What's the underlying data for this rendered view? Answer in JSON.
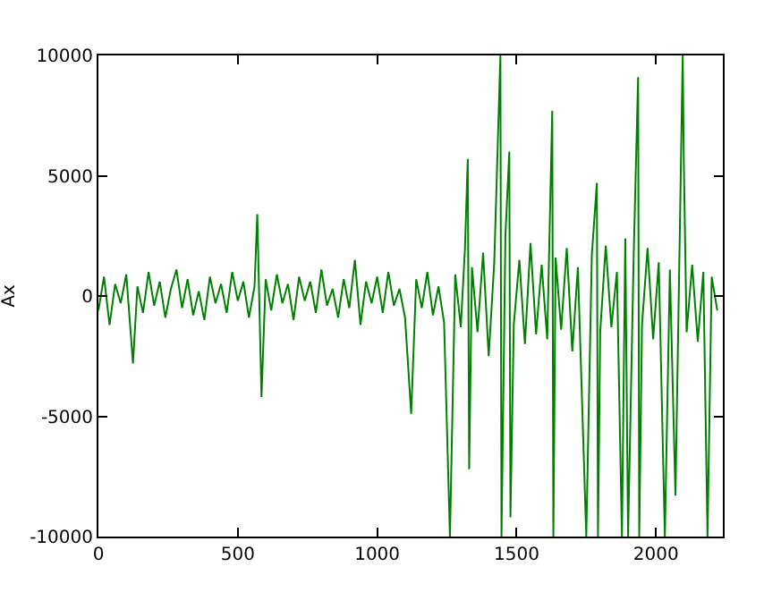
{
  "chart_data": {
    "type": "line",
    "ylabel": "Ax",
    "x": [
      0,
      20,
      40,
      60,
      80,
      100,
      124,
      140,
      160,
      180,
      200,
      220,
      240,
      260,
      280,
      300,
      320,
      340,
      360,
      380,
      400,
      420,
      440,
      460,
      480,
      500,
      520,
      540,
      560,
      570,
      585,
      600,
      620,
      640,
      660,
      680,
      700,
      720,
      740,
      760,
      780,
      800,
      820,
      840,
      860,
      880,
      900,
      920,
      940,
      960,
      980,
      1000,
      1020,
      1040,
      1060,
      1080,
      1100,
      1122,
      1140,
      1160,
      1180,
      1200,
      1220,
      1240,
      1261,
      1280,
      1300,
      1315,
      1325,
      1330,
      1340,
      1360,
      1380,
      1400,
      1420,
      1442,
      1446,
      1460,
      1474,
      1478,
      1490,
      1510,
      1530,
      1550,
      1570,
      1590,
      1610,
      1628,
      1632,
      1640,
      1660,
      1680,
      1700,
      1720,
      1750,
      1770,
      1788,
      1792,
      1800,
      1820,
      1840,
      1860,
      1878,
      1890,
      1900,
      1920,
      1936,
      1940,
      1950,
      1970,
      1990,
      2010,
      2032,
      2050,
      2070,
      2085,
      2096,
      2100,
      2110,
      2130,
      2150,
      2170,
      2185,
      2200,
      2220
    ],
    "series": [
      {
        "color": "#008000",
        "values": [
          -600,
          800,
          -1200,
          500,
          -300,
          900,
          -2800,
          400,
          -700,
          1000,
          -400,
          600,
          -900,
          300,
          1100,
          -500,
          700,
          -800,
          200,
          -1000,
          800,
          -300,
          500,
          -700,
          1000,
          -200,
          600,
          -900,
          400,
          3400,
          -4200,
          700,
          -600,
          900,
          -300,
          500,
          -1000,
          800,
          -200,
          600,
          -700,
          1100,
          -400,
          300,
          -900,
          700,
          -500,
          1500,
          -1200,
          600,
          -300,
          800,
          -700,
          1000,
          -400,
          300,
          -900,
          -4900,
          700,
          -500,
          1000,
          -800,
          400,
          -1100,
          -10000,
          900,
          -1300,
          2000,
          5700,
          -7200,
          1200,
          -1500,
          1800,
          -2500,
          1400,
          10000,
          -10000,
          2500,
          6000,
          -9200,
          -1200,
          1500,
          -2000,
          2200,
          -1600,
          1300,
          -1800,
          7700,
          -10000,
          1600,
          -1400,
          2000,
          -2300,
          1200,
          -10000,
          1700,
          4700,
          -10000,
          -1500,
          2100,
          -1300,
          1000,
          -10000,
          2400,
          -10000,
          1600,
          9100,
          -10000,
          -1200,
          2000,
          -1800,
          1400,
          -10000,
          1100,
          -8300,
          2200,
          10000,
          5500,
          -1500,
          1300,
          -1900,
          1000,
          -10000,
          800,
          -600
        ]
      }
    ],
    "xlim": [
      0,
      2240
    ],
    "ylim": [
      -10000,
      10000
    ],
    "xticks": [
      0,
      500,
      1000,
      1500,
      2000
    ],
    "yticks": [
      -10000,
      -5000,
      0,
      5000,
      10000
    ],
    "grid": false,
    "marker": "none",
    "line_style": "solid"
  }
}
